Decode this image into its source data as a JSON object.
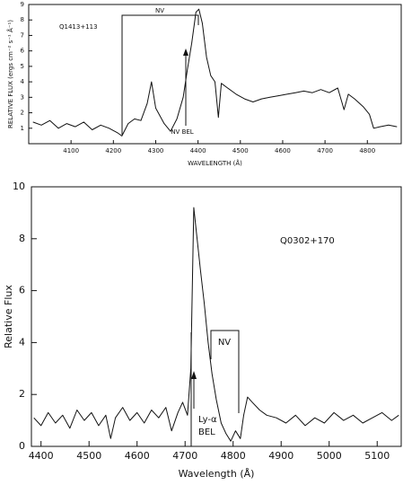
{
  "chart_data": [
    {
      "type": "line",
      "color": "#111111",
      "xlabel": "WAVELENGTH (Å)",
      "ylabel": "RELATIVE FLUX (ergs cm⁻² s⁻¹ Å⁻¹)",
      "annotations": [
        "Q1413+113",
        "NV",
        "NV BEL"
      ],
      "xlim": [
        4000,
        4880
      ],
      "ylim": [
        0,
        9
      ],
      "xticks": [
        4100,
        4200,
        4300,
        4400,
        4500,
        4600,
        4700,
        4800
      ],
      "yticks": [
        1,
        2,
        3,
        4,
        5,
        6,
        7,
        8,
        9
      ],
      "x": [
        4010,
        4030,
        4050,
        4070,
        4090,
        4110,
        4130,
        4150,
        4170,
        4190,
        4210,
        4220,
        4235,
        4250,
        4265,
        4280,
        4290,
        4300,
        4310,
        4320,
        4335,
        4350,
        4365,
        4375,
        4385,
        4395,
        4402,
        4410,
        4420,
        4430,
        4440,
        4448,
        4455,
        4470,
        4490,
        4510,
        4530,
        4550,
        4570,
        4590,
        4610,
        4630,
        4650,
        4670,
        4690,
        4710,
        4730,
        4745,
        4755,
        4770,
        4790,
        4805,
        4815,
        4830,
        4850,
        4870
      ],
      "values": [
        1.4,
        1.2,
        1.5,
        1.0,
        1.3,
        1.1,
        1.4,
        0.9,
        1.2,
        1.0,
        0.7,
        0.5,
        1.3,
        1.6,
        1.5,
        2.6,
        4.0,
        2.3,
        1.8,
        1.3,
        0.8,
        1.6,
        3.0,
        4.8,
        6.5,
        8.5,
        8.7,
        7.8,
        5.6,
        4.4,
        4.0,
        1.7,
        3.9,
        3.6,
        3.2,
        2.9,
        2.7,
        2.9,
        3.0,
        3.1,
        3.2,
        3.3,
        3.4,
        3.3,
        3.5,
        3.3,
        3.6,
        2.2,
        3.2,
        2.9,
        2.4,
        1.9,
        1.0,
        1.1,
        1.2,
        1.1
      ]
    },
    {
      "type": "line",
      "color": "#111111",
      "xlabel": "Wavelength (Å)",
      "ylabel": "Relative Flux",
      "annotations": [
        "Q0302+170",
        "NV",
        "Ly-α",
        "BEL"
      ],
      "xlim": [
        4380,
        5150
      ],
      "ylim": [
        0,
        10
      ],
      "xticks": [
        4400,
        4500,
        4600,
        4700,
        4800,
        4900,
        5000,
        5100
      ],
      "yticks": [
        0,
        2,
        4,
        6,
        8,
        10
      ],
      "x": [
        4385,
        4400,
        4415,
        4430,
        4445,
        4460,
        4475,
        4490,
        4505,
        4520,
        4535,
        4545,
        4555,
        4570,
        4585,
        4600,
        4615,
        4630,
        4645,
        4660,
        4672,
        4685,
        4695,
        4705,
        4712,
        4718,
        4725,
        4732,
        4740,
        4748,
        4756,
        4765,
        4775,
        4785,
        4795,
        4805,
        4815,
        4822,
        4830,
        4840,
        4855,
        4870,
        4890,
        4910,
        4930,
        4950,
        4970,
        4990,
        5010,
        5030,
        5050,
        5070,
        5090,
        5110,
        5130,
        5145
      ],
      "values": [
        1.1,
        0.8,
        1.3,
        0.9,
        1.2,
        0.7,
        1.4,
        1.0,
        1.3,
        0.8,
        1.2,
        0.3,
        1.1,
        1.5,
        1.0,
        1.3,
        0.9,
        1.4,
        1.1,
        1.5,
        0.6,
        1.3,
        1.7,
        1.2,
        3.0,
        9.2,
        8.0,
        6.8,
        5.5,
        4.0,
        2.8,
        1.8,
        0.9,
        0.5,
        0.2,
        0.6,
        0.3,
        1.2,
        1.9,
        1.7,
        1.4,
        1.2,
        1.1,
        0.9,
        1.2,
        0.8,
        1.1,
        0.9,
        1.3,
        1.0,
        1.2,
        0.9,
        1.1,
        1.3,
        1.0,
        1.2
      ]
    }
  ]
}
